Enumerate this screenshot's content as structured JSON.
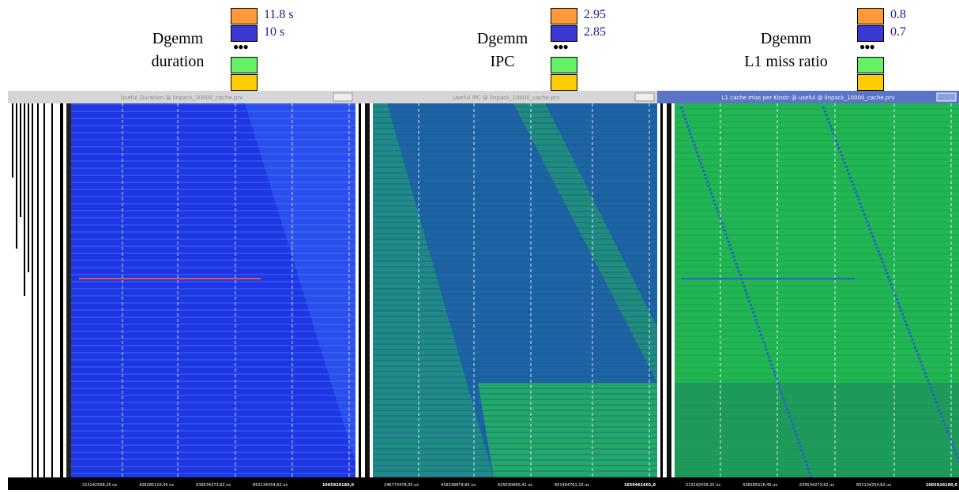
{
  "panels": [
    {
      "label_lines": [
        "Dgemm",
        "duration"
      ],
      "legend": [
        "11.8 s",
        "10 s"
      ],
      "window_title": "Useful Duration @ linpack_10000_cache.prv",
      "time_labels": [
        "213142558,25 us",
        "426285116,45 us",
        "639534273,62 us",
        "852134254,62 us",
        "1065926180,0"
      ]
    },
    {
      "label_lines": [
        "Dgemm",
        "IPC"
      ],
      "legend": [
        "2.95",
        "2.85"
      ],
      "window_title": "Useful IPC @ linpack_10000_cache.prv",
      "time_labels": [
        "246773478,05 us",
        "416338879,65 us",
        "625030660,41 us",
        "851464761,15 us",
        "1659461601,0"
      ]
    },
    {
      "label_lines": [
        "Dgemm",
        "L1 miss ratio"
      ],
      "legend": [
        "0.8",
        "0.7"
      ],
      "window_title": "L1 cache miss per Kinstr @ useful @ linpack_10000_cache.prv",
      "time_labels": [
        "213142558,25 us",
        "426585516,45 us",
        "639534273,62 us",
        "852134254,62 us",
        "1065926180,0"
      ]
    }
  ]
}
